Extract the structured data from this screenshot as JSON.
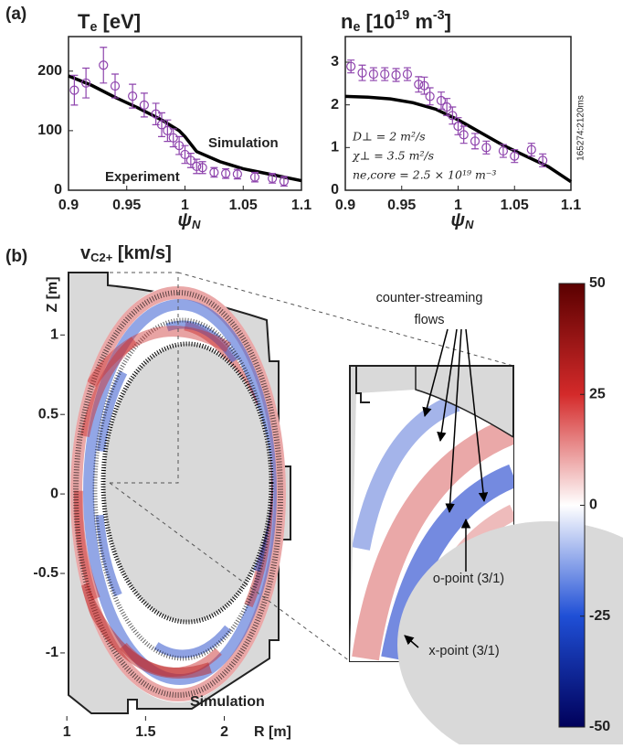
{
  "panel_labels": [
    "(a)",
    "(b)"
  ],
  "chart_data": [
    {
      "type": "line",
      "title": [
        "T",
        "e",
        " [eV]"
      ],
      "xlabel": [
        "ψ",
        "N"
      ],
      "xlim": [
        0.9,
        1.1
      ],
      "xticks": [
        0.9,
        0.95,
        1,
        1.05,
        1.1
      ],
      "ylim": [
        0,
        258
      ],
      "yticks": [
        0,
        100,
        200
      ],
      "series": [
        {
          "name": "Simulation",
          "color": "#000000",
          "x": [
            0.9,
            0.92,
            0.94,
            0.96,
            0.98,
            0.995,
            1.0,
            1.01,
            1.03,
            1.05,
            1.07,
            1.1
          ],
          "values": [
            192,
            176,
            156,
            138,
            118,
            100,
            90,
            65,
            48,
            36,
            28,
            16
          ]
        },
        {
          "name": "Experiment",
          "color": "#8e44ad",
          "marker": "open-circle",
          "x": [
            0.905,
            0.915,
            0.93,
            0.94,
            0.955,
            0.965,
            0.975,
            0.98,
            0.985,
            0.99,
            0.995,
            1.0,
            1.005,
            1.01,
            1.015,
            1.025,
            1.035,
            1.045,
            1.06,
            1.075,
            1.085
          ],
          "values": [
            168,
            180,
            210,
            175,
            158,
            143,
            128,
            110,
            100,
            88,
            75,
            60,
            50,
            40,
            38,
            30,
            28,
            27,
            22,
            20,
            15
          ],
          "errors": [
            25,
            25,
            30,
            20,
            20,
            20,
            18,
            20,
            18,
            15,
            15,
            15,
            12,
            12,
            10,
            8,
            8,
            8,
            8,
            8,
            8
          ]
        }
      ]
    },
    {
      "type": "line",
      "title": [
        "n",
        "e",
        " [10",
        "19",
        " m",
        "-3",
        "]"
      ],
      "xlabel": [
        "ψ",
        "N"
      ],
      "xlim": [
        0.9,
        1.1
      ],
      "xticks": [
        0.9,
        0.95,
        1,
        1.05,
        1.1
      ],
      "ylim": [
        0,
        3.6
      ],
      "yticks": [
        0,
        1,
        2,
        3
      ],
      "annotations": [
        "D⊥ = 2 m²/s",
        "χ⊥ = 3.5 m²/s",
        "ne,core = 2.5 × 10¹⁹ m⁻³"
      ],
      "side_note": "165274:2120ms",
      "series": [
        {
          "color": "#000000",
          "x": [
            0.9,
            0.92,
            0.94,
            0.96,
            0.98,
            1.0,
            1.02,
            1.04,
            1.06,
            1.08,
            1.1
          ],
          "values": [
            2.2,
            2.18,
            2.14,
            2.05,
            1.9,
            1.65,
            1.35,
            1.05,
            0.8,
            0.55,
            0.2
          ]
        },
        {
          "color": "#8e44ad",
          "marker": "open-circle",
          "x": [
            0.905,
            0.915,
            0.925,
            0.935,
            0.945,
            0.955,
            0.965,
            0.97,
            0.975,
            0.985,
            0.99,
            0.995,
            1.0,
            1.005,
            1.015,
            1.025,
            1.04,
            1.05,
            1.065,
            1.075
          ],
          "values": [
            2.9,
            2.75,
            2.72,
            2.72,
            2.7,
            2.72,
            2.48,
            2.45,
            2.2,
            2.1,
            1.95,
            1.75,
            1.5,
            1.3,
            1.15,
            1.0,
            0.92,
            0.8,
            0.95,
            0.7
          ],
          "errors": [
            0.15,
            0.18,
            0.15,
            0.15,
            0.15,
            0.15,
            0.18,
            0.2,
            0.2,
            0.2,
            0.2,
            0.2,
            0.2,
            0.2,
            0.18,
            0.15,
            0.15,
            0.15,
            0.15,
            0.15
          ]
        }
      ]
    },
    {
      "type": "image",
      "title": [
        "v",
        "C",
        "2+",
        " [km/s]"
      ],
      "xlabel": "R [m]",
      "ylabel": "Z [m]",
      "xlim": [
        0.97,
        2.49
      ],
      "xticks": [
        1,
        1.5,
        2
      ],
      "ylim": [
        -1.38,
        1.41
      ],
      "yticks": [
        -1,
        -0.5,
        0,
        0.5,
        1
      ],
      "annotations": [
        "Simulation",
        "counter-streaming",
        "flows",
        "o-point (3/1)",
        "x-point (3/1)"
      ]
    },
    {
      "type": "colorbar",
      "ylim": [
        -50,
        50
      ],
      "yticks": [
        -50,
        -25,
        0,
        25,
        50
      ],
      "colors": [
        "#5a0000",
        "#d42a2a",
        "#ffffff",
        "#1f4fd6",
        "#00005a"
      ]
    }
  ]
}
